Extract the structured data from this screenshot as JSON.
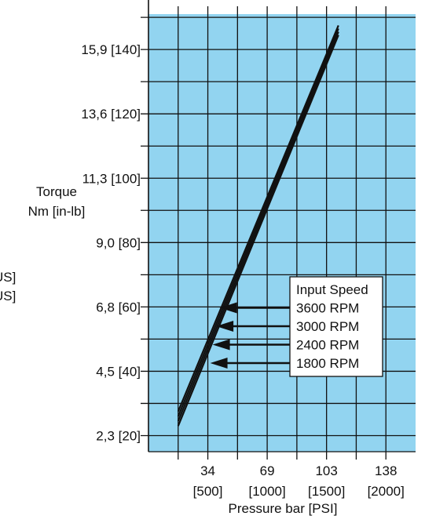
{
  "chart_data": {
    "type": "line",
    "title": "",
    "ylabel_lines": [
      "Torque",
      "Nm [in-lb]"
    ],
    "xlabel": "Pressure bar [PSI]",
    "y_ticks": [
      {
        "value": 20,
        "label": "2,3 [20]"
      },
      {
        "value": 40,
        "label": "4,5 [40]"
      },
      {
        "value": 60,
        "label": "6,8 [60]"
      },
      {
        "value": 80,
        "label": "9,0 [80]"
      },
      {
        "value": 100,
        "label": "11,3 [100]"
      },
      {
        "value": 120,
        "label": "13,6 [120]"
      },
      {
        "value": 140,
        "label": "15,9 [140]"
      }
    ],
    "x_ticks": [
      {
        "value": 500,
        "label_top": "34",
        "label_bottom": "[500]"
      },
      {
        "value": 1000,
        "label_top": "69",
        "label_bottom": "[1000]"
      },
      {
        "value": 1500,
        "label_top": "103",
        "label_bottom": "[1500]"
      },
      {
        "value": 2000,
        "label_top": "138",
        "label_bottom": "[2000]"
      }
    ],
    "xlim": [
      0,
      2250
    ],
    "ylim": [
      15,
      151
    ],
    "grid": true,
    "plot_background": "#92d4f0",
    "line_color": "#111111",
    "legend": {
      "title": "Input Speed",
      "placement": "center-right"
    },
    "series": [
      {
        "name": "3600 RPM",
        "x": [
          250,
          1600
        ],
        "y": [
          27.5,
          147.5
        ],
        "label_point": {
          "x": 600,
          "y": 58.5
        }
      },
      {
        "name": "3000 RPM",
        "x": [
          250,
          1600
        ],
        "y": [
          26.0,
          146.5
        ],
        "label_point": {
          "x": 570,
          "y": 53.5
        }
      },
      {
        "name": "2400 RPM",
        "x": [
          250,
          1600
        ],
        "y": [
          24.5,
          145.5
        ],
        "label_point": {
          "x": 540,
          "y": 48.0
        }
      },
      {
        "name": "1800 RPM",
        "x": [
          250,
          1600
        ],
        "y": [
          23.0,
          144.5
        ],
        "label_point": {
          "x": 520,
          "y": 42.5
        }
      }
    ]
  },
  "left_clipped_text": [
    "US]",
    "US]"
  ]
}
